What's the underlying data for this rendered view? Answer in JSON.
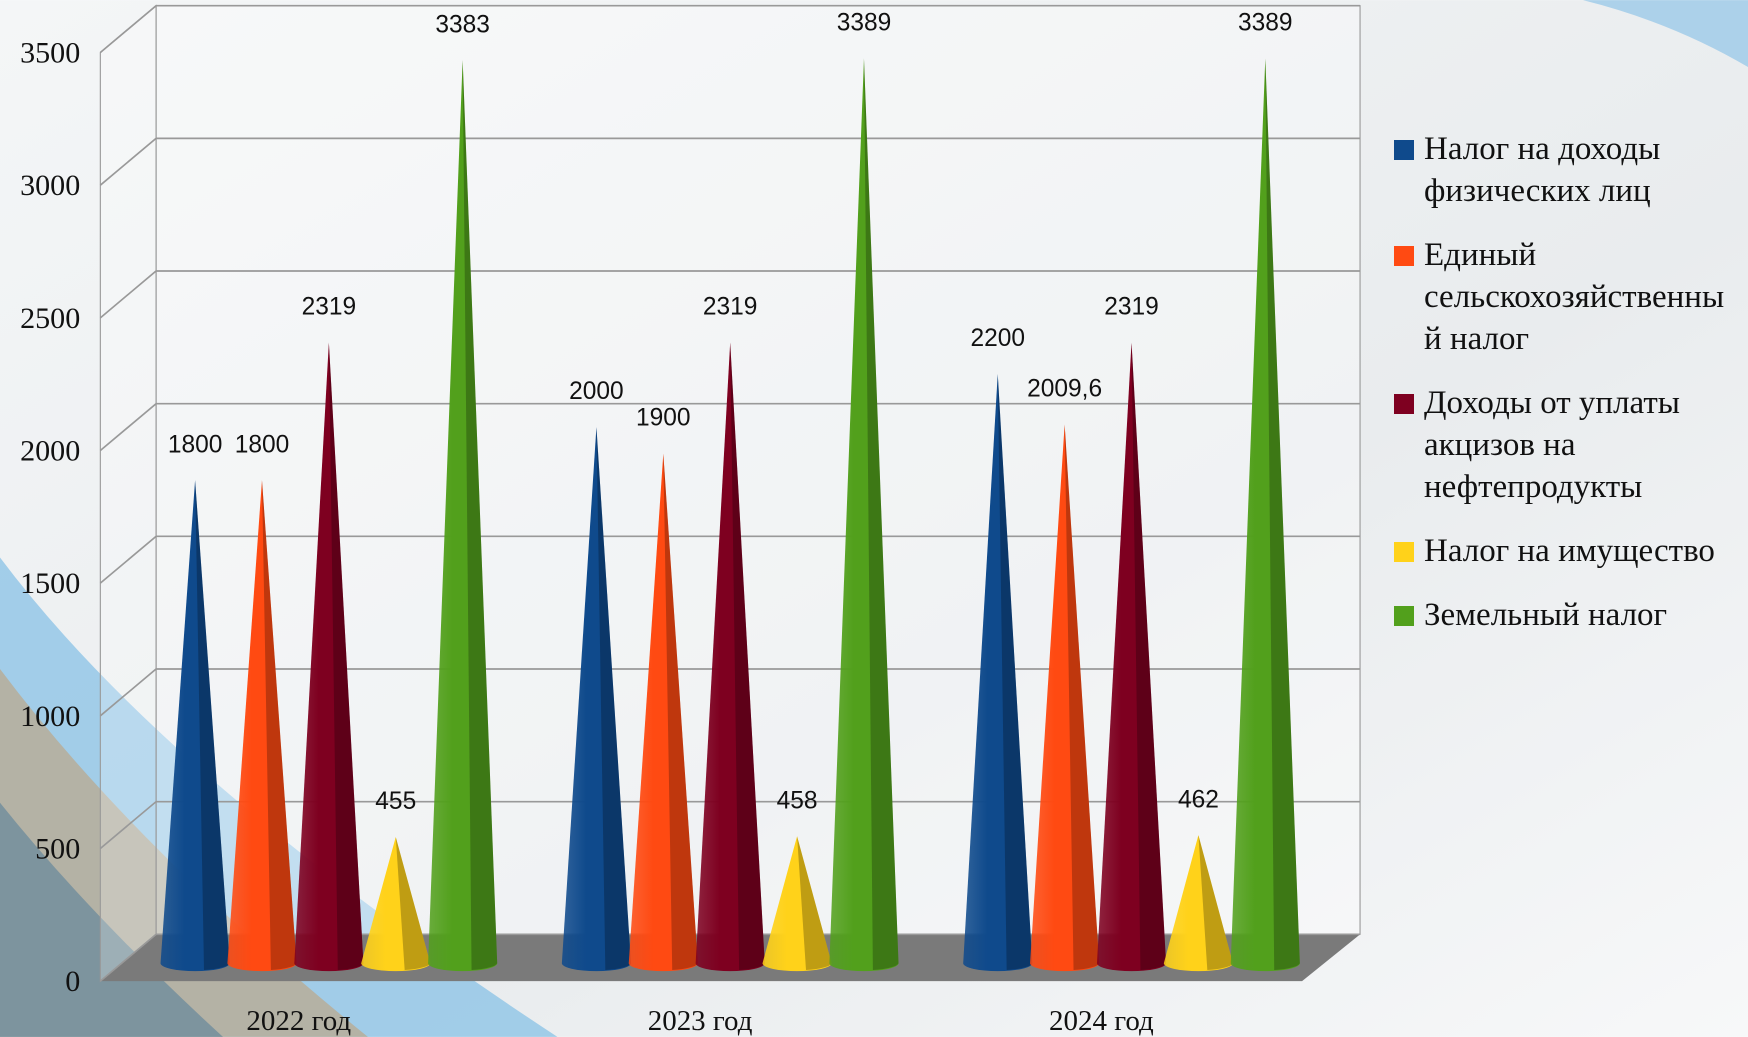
{
  "chart_data": {
    "type": "cone",
    "categories": [
      "2022 год",
      "2023 год",
      "2024 год"
    ],
    "series": [
      {
        "name": "Налог на доходы физических лиц",
        "color": "#0f4a8c",
        "values": [
          1800,
          2000,
          2200
        ]
      },
      {
        "name": "Единый сельскохозяйственный налог",
        "color": "#ff4a12",
        "values": [
          1800,
          1900,
          2009.6
        ],
        "value_labels": [
          "1800",
          "1900",
          "2009,6"
        ]
      },
      {
        "name": "Доходы от уплаты акцизов на нефтепродукты",
        "color": "#7e0020",
        "values": [
          2319,
          2319,
          2319
        ]
      },
      {
        "name": "Налог на имущество",
        "color": "#ffd21a",
        "values": [
          455,
          458,
          462
        ]
      },
      {
        "name": "Земельный налог",
        "color": "#52a01c",
        "values": [
          3383,
          3389,
          3389
        ]
      }
    ],
    "ylim": [
      0,
      3500
    ],
    "yticks": [
      0,
      500,
      1000,
      1500,
      2000,
      2500,
      3000,
      3500
    ],
    "grid": true
  }
}
